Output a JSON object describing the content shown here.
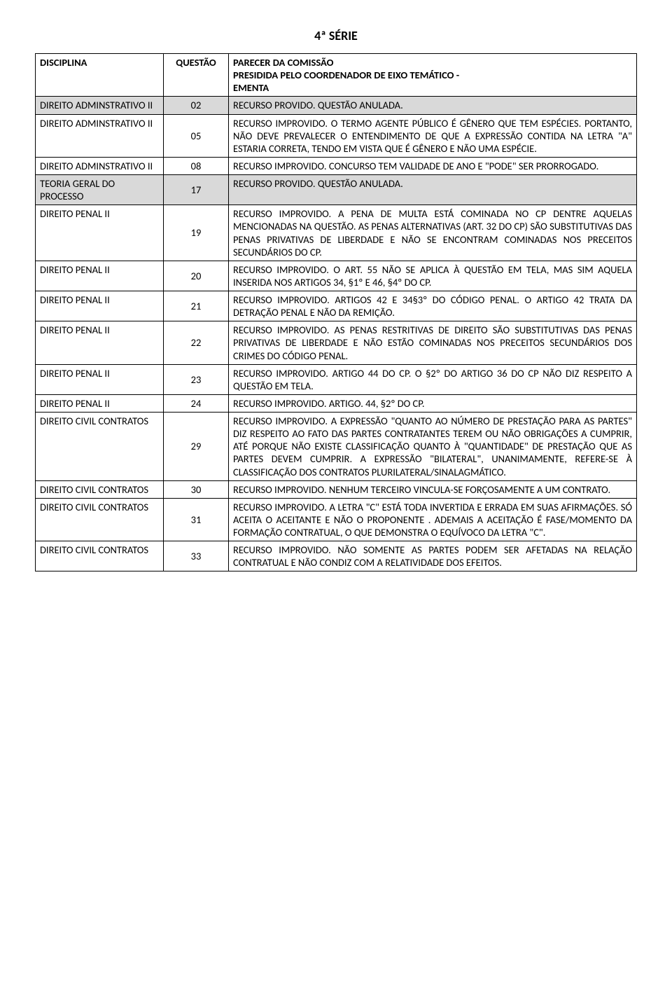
{
  "title": "4ª SÉRIE",
  "headers": {
    "col1": "DISCIPLINA",
    "col2": "QUESTÃO",
    "col3_line1": "PARECER DA COMISSÃO",
    "col3_line2": "PRESIDIDA PELO COORDENADOR DE EIXO TEMÁTICO -",
    "col3_line3": "EMENTA"
  },
  "rows": [
    {
      "shade": true,
      "disc": "DIREITO ADMINSTRATIVO II",
      "q": "02",
      "p": "RECURSO PROVIDO. QUESTÃO ANULADA."
    },
    {
      "shade": false,
      "disc": "DIREITO ADMINSTRATIVO II",
      "q": "05",
      "p": "RECURSO IMPROVIDO. O TERMO AGENTE PÚBLICO É GÊNERO QUE TEM ESPÉCIES. PORTANTO, NÃO DEVE PREVALECER O ENTENDIMENTO DE QUE A EXPRESSÃO CONTIDA NA LETRA \"A\" ESTARIA CORRETA, TENDO EM VISTA QUE É GÊNERO E NÃO UMA ESPÉCIE."
    },
    {
      "shade": false,
      "disc": "DIREITO ADMINSTRATIVO II",
      "q": "08",
      "p": "RECURSO IMPROVIDO. CONCURSO TEM VALIDADE DE ANO E \"PODE\" SER PRORROGADO."
    },
    {
      "shade": true,
      "disc": "TEORIA GERAL DO PROCESSO",
      "q": "17",
      "p": "RECURSO PROVIDO. QUESTÃO ANULADA."
    },
    {
      "shade": false,
      "disc": "DIREITO PENAL II",
      "q": "19",
      "p": "RECURSO IMPROVIDO. A PENA DE MULTA ESTÁ COMINADA NO CP DENTRE AQUELAS MENCIONADAS NA QUESTÃO. AS PENAS ALTERNATIVAS (ART. 32 DO CP) SÃO SUBSTITUTIVAS DAS PENAS PRIVATIVAS DE LIBERDADE E NÃO SE ENCONTRAM COMINADAS NOS PRECEITOS SECUNDÁRIOS DO CP."
    },
    {
      "shade": false,
      "disc": "DIREITO PENAL II",
      "q": "20",
      "p": "RECURSO IMPROVIDO. O ART. 55 NÃO SE APLICA À QUESTÃO EM TELA, MAS SIM AQUELA INSERIDA NOS ARTIGOS 34, §1º E 46, §4º DO CP."
    },
    {
      "shade": false,
      "disc": "DIREITO PENAL II",
      "q": "21",
      "p": "RECURSO IMPROVIDO. ARTIGOS 42 E 34§3º DO CÓDIGO PENAL. O ARTIGO 42 TRATA DA DETRAÇÃO PENAL E NÃO DA REMIÇÃO."
    },
    {
      "shade": false,
      "disc": "DIREITO PENAL II",
      "q": "22",
      "p": "RECURSO IMPROVIDO. AS PENAS RESTRITIVAS DE DIREITO SÃO SUBSTITUTIVAS DAS PENAS PRIVATIVAS DE LIBERDADE E NÃO ESTÃO COMINADAS NOS PRECEITOS SECUNDÁRIOS DOS CRIMES DO CÓDIGO PENAL."
    },
    {
      "shade": false,
      "disc": "DIREITO PENAL II",
      "q": "23",
      "p": "RECURSO IMPROVIDO. ARTIGO 44 DO CP. O §2º DO ARTIGO 36 DO CP NÃO DIZ RESPEITO A QUESTÃO EM TELA."
    },
    {
      "shade": false,
      "disc": "DIREITO PENAL II",
      "q": "24",
      "p": "RECURSO IMPROVIDO. ARTIGO. 44, §2º DO CP."
    },
    {
      "shade": false,
      "disc": "DIREITO CIVIL CONTRATOS",
      "q": "29",
      "p": "RECURSO IMPROVIDO. A EXPRESSÃO \"QUANTO AO NÚMERO DE PRESTAÇÃO PARA AS PARTES\" DIZ RESPEITO AO FATO DAS PARTES CONTRATANTES TEREM OU NÃO OBRIGAÇÕES A CUMPRIR, ATÉ PORQUE NÃO EXISTE CLASSIFICAÇÃO QUANTO À \"QUANTIDADE\" DE PRESTAÇÃO QUE AS PARTES DEVEM CUMPRIR. A EXPRESSÃO \"BILATERAL\", UNANIMAMENTE, REFERE-SE À CLASSIFICAÇÃO DOS CONTRATOS PLURILATERAL/SINALAGMÁTICO."
    },
    {
      "shade": false,
      "disc": "DIREITO CIVIL CONTRATOS",
      "q": "30",
      "p": "RECURSO IMPROVIDO. NENHUM TERCEIRO VINCULA-SE FORÇOSAMENTE A UM CONTRATO."
    },
    {
      "shade": false,
      "disc": "DIREITO CIVIL CONTRATOS",
      "q": "31",
      "p": "RECURSO IMPROVIDO. A LETRA \"C\" ESTÁ TODA INVERTIDA E ERRADA EM SUAS AFIRMAÇÕES. SÓ ACEITA O ACEITANTE E NÃO O PROPONENTE . ADEMAIS A ACEITAÇÃO É FASE/MOMENTO DA FORMAÇÃO CONTRATUAL, O QUE DEMONSTRA O EQUÍVOCO DA LETRA \"C\"."
    },
    {
      "shade": false,
      "disc": "DIREITO CIVIL CONTRATOS",
      "q": "33",
      "p": "RECURSO IMPROVIDO. NÃO SOMENTE AS PARTES PODEM SER AFETADAS NA RELAÇÃO CONTRATUAL  E NÃO CONDIZ COM A RELATIVIDADE DOS EFEITOS."
    }
  ]
}
